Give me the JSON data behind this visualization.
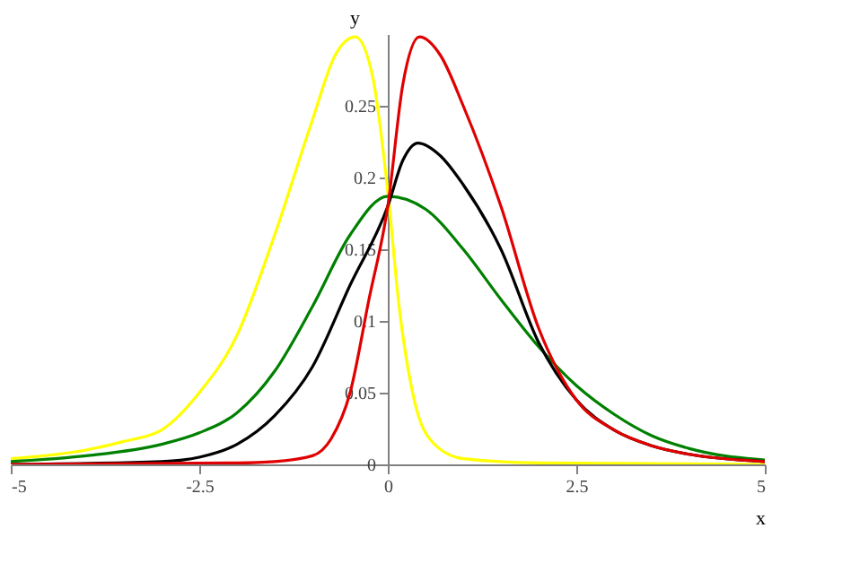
{
  "chart_data": {
    "type": "line",
    "xlabel": "x",
    "ylabel": "y",
    "xlim": [
      -5,
      5
    ],
    "ylim": [
      0,
      0.3
    ],
    "xticks": [
      -5,
      -2.5,
      0,
      2.5,
      5
    ],
    "yticks": [
      0,
      0.05,
      0.1,
      0.15,
      0.2,
      0.25
    ],
    "grid": false,
    "legend": false,
    "marker": "none",
    "line_style": "solid",
    "series": [
      {
        "color": "#ffff00",
        "x": [
          -5,
          -4,
          -3.5,
          -3,
          -2.5,
          -2,
          -1.5,
          -1,
          -0.7,
          -0.43,
          -0.2,
          0,
          0.15,
          0.35,
          0.6,
          1,
          2,
          5
        ],
        "values": [
          0.004,
          0.01,
          0.016,
          0.024,
          0.05,
          0.09,
          0.16,
          0.24,
          0.285,
          0.298,
          0.27,
          0.19,
          0.11,
          0.045,
          0.015,
          0.004,
          0.001,
          0
        ]
      },
      {
        "color": "#008000",
        "x": [
          -5,
          -4,
          -3,
          -2.5,
          -2,
          -1.5,
          -1,
          -0.5,
          0,
          0.5,
          1,
          1.5,
          2,
          2.5,
          3,
          3.5,
          4,
          5
        ],
        "values": [
          0.002,
          0.006,
          0.014,
          0.022,
          0.036,
          0.065,
          0.11,
          0.16,
          0.187,
          0.178,
          0.15,
          0.115,
          0.082,
          0.055,
          0.035,
          0.02,
          0.011,
          0.003
        ]
      },
      {
        "color": "#000000",
        "x": [
          -5,
          -3,
          -2.5,
          -2,
          -1.5,
          -1,
          -0.5,
          0,
          0.2,
          0.4,
          0.7,
          1,
          1.5,
          2,
          2.5,
          3,
          3.5,
          4,
          5
        ],
        "values": [
          0,
          0.002,
          0.005,
          0.014,
          0.034,
          0.068,
          0.125,
          0.18,
          0.212,
          0.224,
          0.215,
          0.195,
          0.15,
          0.085,
          0.045,
          0.024,
          0.013,
          0.007,
          0.002
        ]
      },
      {
        "color": "#e00000",
        "x": [
          -5,
          -2,
          -1.5,
          -1,
          -0.75,
          -0.5,
          -0.25,
          0,
          0.2,
          0.42,
          0.7,
          1,
          1.5,
          2,
          2.5,
          3,
          3.5,
          4,
          5
        ],
        "values": [
          0,
          0.001,
          0.002,
          0.006,
          0.018,
          0.05,
          0.115,
          0.18,
          0.265,
          0.298,
          0.285,
          0.25,
          0.18,
          0.095,
          0.045,
          0.024,
          0.013,
          0.007,
          0.002
        ]
      }
    ]
  }
}
